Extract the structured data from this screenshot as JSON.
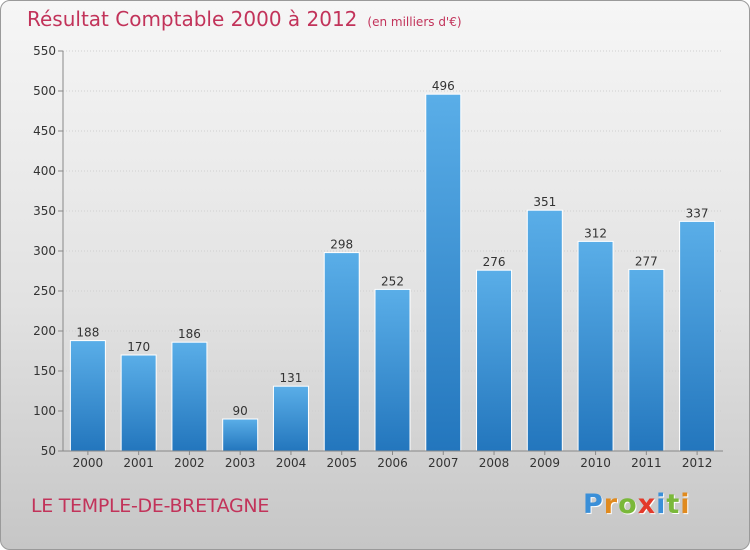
{
  "header": {
    "title": "Résultat Comptable 2000 à 2012",
    "subtitle": "(en milliers d'€)"
  },
  "footer": {
    "commune": "LE TEMPLE-DE-BRETAGNE",
    "logo_letters": [
      "P",
      "r",
      "o",
      "x",
      "i",
      "t",
      "i"
    ],
    "logo_colors": [
      "#3a8fd8",
      "#e08a1e",
      "#7ab83a",
      "#e33a2a",
      "#3a8fd8",
      "#7ab83a",
      "#e08a1e"
    ]
  },
  "chart_data": {
    "type": "bar",
    "title": "Résultat Comptable 2000 à 2012",
    "subtitle": "(en milliers d'€)",
    "xlabel": "",
    "ylabel": "",
    "categories": [
      "2000",
      "2001",
      "2002",
      "2003",
      "2004",
      "2005",
      "2006",
      "2007",
      "2008",
      "2009",
      "2010",
      "2011",
      "2012"
    ],
    "values": [
      188,
      170,
      186,
      90,
      131,
      298,
      252,
      496,
      276,
      351,
      312,
      277,
      337
    ],
    "ylim": [
      50,
      550
    ],
    "yticks": [
      50,
      100,
      150,
      200,
      250,
      300,
      350,
      400,
      450,
      500,
      550
    ],
    "grid": true,
    "bar_color": "#3d95d8"
  }
}
